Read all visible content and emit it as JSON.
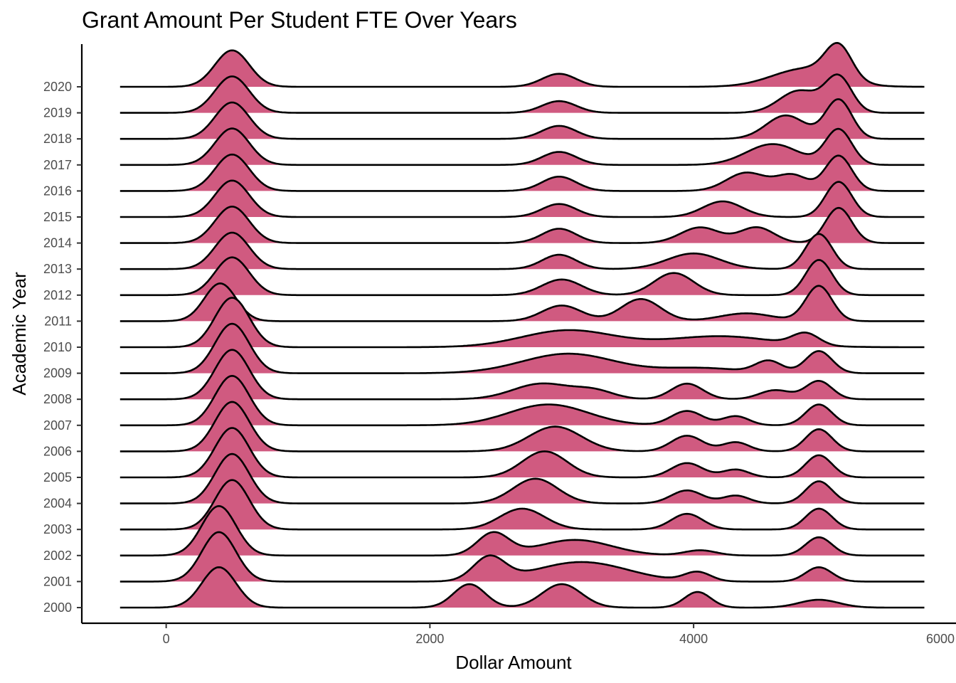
{
  "chart_data": {
    "type": "area",
    "subtype": "ridgeline-density",
    "title": "Grant Amount Per Student FTE Over Years",
    "xlabel": "Dollar Amount",
    "ylabel": "Academic Year",
    "xlim": [
      -350,
      5750
    ],
    "x_axis_range": [
      -640,
      5990
    ],
    "x_ticks": [
      0,
      2000,
      4000,
      6000
    ],
    "x_tick_labels": [
      "0",
      "2000",
      "4000",
      "6000"
    ],
    "fill_color": "#d05a80",
    "line_color": "#000000",
    "grid": false,
    "legend": "none",
    "series": [
      {
        "name": "2000",
        "peaks": [
          {
            "x": 400,
            "w": 130,
            "h": 1.55
          },
          {
            "x": 2300,
            "w": 120,
            "h": 0.9
          },
          {
            "x": 3000,
            "w": 150,
            "h": 0.9
          },
          {
            "x": 4030,
            "w": 100,
            "h": 0.6
          },
          {
            "x": 4950,
            "w": 150,
            "h": 0.3
          }
        ]
      },
      {
        "name": "2001",
        "peaks": [
          {
            "x": 400,
            "w": 130,
            "h": 1.9
          },
          {
            "x": 2450,
            "w": 120,
            "h": 0.9
          },
          {
            "x": 3150,
            "w": 350,
            "h": 0.75
          },
          {
            "x": 4030,
            "w": 100,
            "h": 0.35
          },
          {
            "x": 4950,
            "w": 100,
            "h": 0.55
          }
        ]
      },
      {
        "name": "2002",
        "peaks": [
          {
            "x": 400,
            "w": 130,
            "h": 1.9
          },
          {
            "x": 2480,
            "w": 120,
            "h": 0.85
          },
          {
            "x": 3100,
            "w": 280,
            "h": 0.6
          },
          {
            "x": 4050,
            "w": 120,
            "h": 0.2
          },
          {
            "x": 4950,
            "w": 100,
            "h": 0.7
          }
        ]
      },
      {
        "name": "2003",
        "peaks": [
          {
            "x": 500,
            "w": 130,
            "h": 1.9
          },
          {
            "x": 2700,
            "w": 170,
            "h": 0.8
          },
          {
            "x": 3950,
            "w": 120,
            "h": 0.6
          },
          {
            "x": 4950,
            "w": 100,
            "h": 0.8
          }
        ]
      },
      {
        "name": "2004",
        "peaks": [
          {
            "x": 500,
            "w": 130,
            "h": 1.9
          },
          {
            "x": 2800,
            "w": 170,
            "h": 0.95
          },
          {
            "x": 3950,
            "w": 120,
            "h": 0.5
          },
          {
            "x": 4320,
            "w": 100,
            "h": 0.3
          },
          {
            "x": 4950,
            "w": 100,
            "h": 0.85
          }
        ]
      },
      {
        "name": "2005",
        "peaks": [
          {
            "x": 500,
            "w": 130,
            "h": 1.9
          },
          {
            "x": 2870,
            "w": 170,
            "h": 1.0
          },
          {
            "x": 3950,
            "w": 120,
            "h": 0.55
          },
          {
            "x": 4320,
            "w": 100,
            "h": 0.3
          },
          {
            "x": 4950,
            "w": 100,
            "h": 0.85
          }
        ]
      },
      {
        "name": "2006",
        "peaks": [
          {
            "x": 500,
            "w": 130,
            "h": 1.9
          },
          {
            "x": 2950,
            "w": 200,
            "h": 0.95
          },
          {
            "x": 3950,
            "w": 120,
            "h": 0.6
          },
          {
            "x": 4320,
            "w": 100,
            "h": 0.35
          },
          {
            "x": 4950,
            "w": 100,
            "h": 0.85
          }
        ]
      },
      {
        "name": "2007",
        "peaks": [
          {
            "x": 500,
            "w": 130,
            "h": 1.9
          },
          {
            "x": 2900,
            "w": 300,
            "h": 0.8
          },
          {
            "x": 3950,
            "w": 120,
            "h": 0.55
          },
          {
            "x": 4320,
            "w": 100,
            "h": 0.35
          },
          {
            "x": 4950,
            "w": 100,
            "h": 0.8
          }
        ]
      },
      {
        "name": "2008",
        "peaks": [
          {
            "x": 500,
            "w": 130,
            "h": 1.9
          },
          {
            "x": 2850,
            "w": 220,
            "h": 0.6
          },
          {
            "x": 3250,
            "w": 150,
            "h": 0.3
          },
          {
            "x": 3950,
            "w": 120,
            "h": 0.6
          },
          {
            "x": 4620,
            "w": 120,
            "h": 0.35
          },
          {
            "x": 4950,
            "w": 100,
            "h": 0.7
          }
        ]
      },
      {
        "name": "2009",
        "peaks": [
          {
            "x": 500,
            "w": 130,
            "h": 1.9
          },
          {
            "x": 3050,
            "w": 350,
            "h": 0.75
          },
          {
            "x": 4050,
            "w": 300,
            "h": 0.2
          },
          {
            "x": 4570,
            "w": 100,
            "h": 0.45
          },
          {
            "x": 4950,
            "w": 100,
            "h": 0.85
          }
        ]
      },
      {
        "name": "2010",
        "peaks": [
          {
            "x": 500,
            "w": 130,
            "h": 1.9
          },
          {
            "x": 3050,
            "w": 350,
            "h": 0.65
          },
          {
            "x": 4200,
            "w": 400,
            "h": 0.42
          },
          {
            "x": 4850,
            "w": 100,
            "h": 0.45
          }
        ]
      },
      {
        "name": "2011",
        "peaks": [
          {
            "x": 410,
            "w": 120,
            "h": 1.45
          },
          {
            "x": 3000,
            "w": 150,
            "h": 0.6
          },
          {
            "x": 3600,
            "w": 150,
            "h": 0.85
          },
          {
            "x": 4400,
            "w": 200,
            "h": 0.3
          },
          {
            "x": 4950,
            "w": 100,
            "h": 1.35
          }
        ]
      },
      {
        "name": "2012",
        "peaks": [
          {
            "x": 500,
            "w": 130,
            "h": 1.45
          },
          {
            "x": 3000,
            "w": 150,
            "h": 0.6
          },
          {
            "x": 3850,
            "w": 150,
            "h": 0.85
          },
          {
            "x": 4950,
            "w": 100,
            "h": 1.35
          }
        ]
      },
      {
        "name": "2013",
        "peaks": [
          {
            "x": 500,
            "w": 130,
            "h": 1.4
          },
          {
            "x": 2980,
            "w": 130,
            "h": 0.55
          },
          {
            "x": 4000,
            "w": 200,
            "h": 0.6
          },
          {
            "x": 4950,
            "w": 100,
            "h": 1.35
          }
        ]
      },
      {
        "name": "2014",
        "peaks": [
          {
            "x": 500,
            "w": 130,
            "h": 1.4
          },
          {
            "x": 2980,
            "w": 130,
            "h": 0.55
          },
          {
            "x": 4050,
            "w": 150,
            "h": 0.6
          },
          {
            "x": 4480,
            "w": 130,
            "h": 0.6
          },
          {
            "x": 5100,
            "w": 100,
            "h": 1.35
          }
        ]
      },
      {
        "name": "2015",
        "peaks": [
          {
            "x": 500,
            "w": 130,
            "h": 1.4
          },
          {
            "x": 2980,
            "w": 130,
            "h": 0.5
          },
          {
            "x": 4220,
            "w": 150,
            "h": 0.6
          },
          {
            "x": 5100,
            "w": 100,
            "h": 1.35
          }
        ]
      },
      {
        "name": "2016",
        "peaks": [
          {
            "x": 500,
            "w": 130,
            "h": 1.4
          },
          {
            "x": 2980,
            "w": 130,
            "h": 0.55
          },
          {
            "x": 4400,
            "w": 150,
            "h": 0.7
          },
          {
            "x": 4750,
            "w": 120,
            "h": 0.6
          },
          {
            "x": 5100,
            "w": 100,
            "h": 1.35
          }
        ]
      },
      {
        "name": "2017",
        "peaks": [
          {
            "x": 500,
            "w": 130,
            "h": 1.4
          },
          {
            "x": 2980,
            "w": 130,
            "h": 0.5
          },
          {
            "x": 4600,
            "w": 200,
            "h": 0.8
          },
          {
            "x": 5100,
            "w": 100,
            "h": 1.35
          }
        ]
      },
      {
        "name": "2018",
        "peaks": [
          {
            "x": 500,
            "w": 130,
            "h": 1.4
          },
          {
            "x": 2980,
            "w": 130,
            "h": 0.5
          },
          {
            "x": 4700,
            "w": 150,
            "h": 0.9
          },
          {
            "x": 5100,
            "w": 100,
            "h": 1.5
          }
        ]
      },
      {
        "name": "2019",
        "peaks": [
          {
            "x": 500,
            "w": 130,
            "h": 1.4
          },
          {
            "x": 2980,
            "w": 130,
            "h": 0.45
          },
          {
            "x": 4800,
            "w": 150,
            "h": 0.85
          },
          {
            "x": 5100,
            "w": 100,
            "h": 1.35
          }
        ]
      },
      {
        "name": "2020",
        "peaks": [
          {
            "x": 500,
            "w": 130,
            "h": 1.4
          },
          {
            "x": 2980,
            "w": 130,
            "h": 0.5
          },
          {
            "x": 4850,
            "w": 250,
            "h": 0.7
          },
          {
            "x": 5100,
            "w": 100,
            "h": 1.25
          }
        ]
      }
    ]
  }
}
